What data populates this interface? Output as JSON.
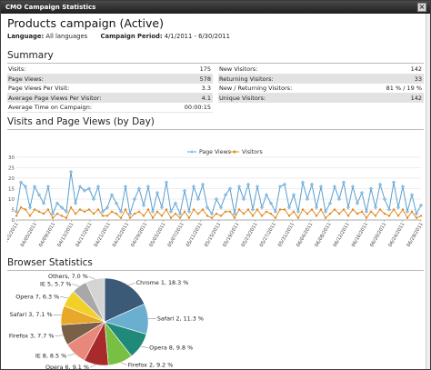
{
  "window": {
    "title": "CMO Campaign Statistics",
    "close_glyph": "×"
  },
  "campaign": {
    "title": "Products campaign (Active)",
    "language_label": "Language:",
    "language_value": "All languages",
    "period_label": "Campaign Period:",
    "period_value": "4/1/2011 - 6/30/2011"
  },
  "summary": {
    "heading": "Summary",
    "left": [
      {
        "label": "Visits:",
        "value": "175"
      },
      {
        "label": "Page Views:",
        "value": "578"
      },
      {
        "label": "Page Views Per Visit:",
        "value": "3.3"
      },
      {
        "label": "Average Page Views Per Visitor:",
        "value": "4.1"
      },
      {
        "label": "Average Time on Campaign:",
        "value": "00:00:15"
      }
    ],
    "right": [
      {
        "label": "New Visitors:",
        "value": "142"
      },
      {
        "label": "Returning Visitors:",
        "value": "33"
      },
      {
        "label": "New / Returning Visitors:",
        "value": "81 % / 19 %"
      },
      {
        "label": "Unique Visitors:",
        "value": "142"
      }
    ]
  },
  "visits_section": {
    "heading": "Visits and Page Views (by Day)"
  },
  "browser_section": {
    "heading": "Browser Statistics"
  },
  "colors": {
    "page_views": "#8fc3e8",
    "page_views_stroke": "#5a9fd0",
    "visitors": "#e08a1e",
    "grid": "#dddddd"
  },
  "chart_data": [
    {
      "type": "line",
      "title": "",
      "xlabel": "",
      "ylabel": "",
      "ylim": [
        0,
        30
      ],
      "yticks": [
        0,
        5,
        10,
        15,
        20,
        25,
        30
      ],
      "grid": true,
      "legend": "top-center",
      "x_tick_labels": [
        "04/01/2011",
        "04/05/2011",
        "04/09/2011",
        "04/13/2011",
        "04/17/2011",
        "04/21/2011",
        "04/25/2011",
        "04/29/2011",
        "05/03/2011",
        "05/07/2011",
        "05/11/2011",
        "05/15/2011",
        "05/19/2011",
        "05/23/2011",
        "05/27/2011",
        "05/31/2011",
        "06/04/2011",
        "06/08/2011",
        "06/12/2011",
        "06/16/2011",
        "06/20/2011",
        "06/24/2011",
        "06/28/2011"
      ],
      "series": [
        {
          "name": "Page Views",
          "values": [
            4,
            18,
            16,
            6,
            16,
            12,
            8,
            16,
            3,
            8,
            6,
            4,
            23,
            8,
            16,
            14,
            15,
            10,
            16,
            4,
            6,
            12,
            8,
            4,
            16,
            3,
            10,
            15,
            7,
            16,
            4,
            13,
            6,
            18,
            4,
            8,
            3,
            14,
            4,
            16,
            10,
            17,
            6,
            3,
            10,
            6,
            12,
            15,
            3,
            16,
            10,
            17,
            5,
            16,
            6,
            12,
            8,
            4,
            16,
            17,
            6,
            12,
            4,
            18,
            10,
            17,
            6,
            16,
            4,
            8,
            16,
            10,
            18,
            6,
            16,
            8,
            13,
            4,
            15,
            6,
            17,
            10,
            5,
            18,
            6,
            16,
            4,
            12,
            3,
            7
          ]
        },
        {
          "name": "Visitors",
          "values": [
            2,
            6,
            5,
            2,
            5,
            4,
            3,
            5,
            1,
            3,
            2,
            1,
            6,
            3,
            5,
            4,
            5,
            3,
            5,
            2,
            2,
            4,
            3,
            1,
            5,
            1,
            3,
            4,
            2,
            5,
            1,
            4,
            2,
            5,
            1,
            3,
            1,
            4,
            1,
            5,
            3,
            5,
            2,
            1,
            3,
            2,
            4,
            4,
            1,
            5,
            3,
            5,
            2,
            5,
            2,
            4,
            3,
            1,
            5,
            5,
            2,
            4,
            1,
            5,
            3,
            5,
            2,
            5,
            1,
            3,
            5,
            3,
            5,
            2,
            5,
            3,
            4,
            1,
            4,
            2,
            5,
            3,
            2,
            5,
            2,
            5,
            1,
            4,
            1,
            2
          ]
        }
      ]
    },
    {
      "type": "pie",
      "title": "",
      "legend": "labels-around",
      "slices": [
        {
          "label": "Chrome 1, 18.3 %",
          "value": 18.3,
          "color": "#3b5a78"
        },
        {
          "label": "Safari 2, 11.3 %",
          "value": 11.3,
          "color": "#6aaed0"
        },
        {
          "label": "Opera 8, 9.8 %",
          "value": 9.8,
          "color": "#1f8a7a"
        },
        {
          "label": "Firefox 2, 9.2 %",
          "value": 9.2,
          "color": "#78c042"
        },
        {
          "label": "Opera 6, 9.1 %",
          "value": 9.1,
          "color": "#a82a2a"
        },
        {
          "label": "IE 8, 8.5 %",
          "value": 8.5,
          "color": "#e8887a"
        },
        {
          "label": "Firefox 3, 7.7 %",
          "value": 7.7,
          "color": "#7a6046"
        },
        {
          "label": "Safari 3, 7.1 %",
          "value": 7.1,
          "color": "#e8a828"
        },
        {
          "label": "Opera 7, 6.3 %",
          "value": 6.3,
          "color": "#f2d028"
        },
        {
          "label": "IE 5, 5.7 %",
          "value": 5.7,
          "color": "#a8a8a8"
        },
        {
          "label": "Others, 7.0 %",
          "value": 7.0,
          "color": "#d4d4d4"
        }
      ]
    }
  ]
}
